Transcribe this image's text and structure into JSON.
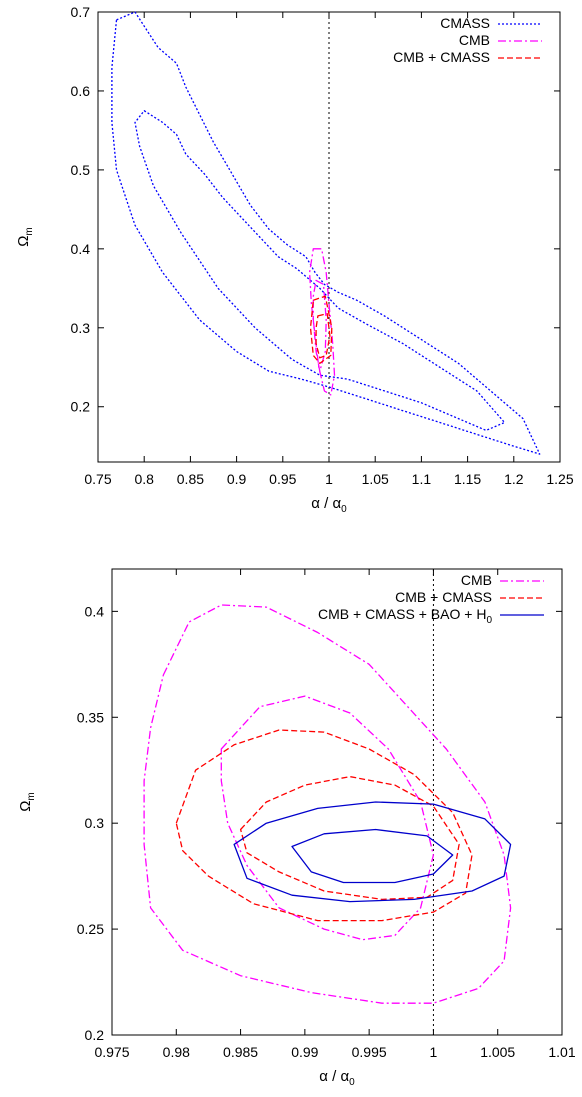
{
  "chart_data": [
    {
      "type": "line",
      "xlabel": "α / α",
      "xlabel_sub": "0",
      "ylabel": "Ω",
      "ylabel_sub": "m",
      "xlim": [
        0.75,
        1.25
      ],
      "ylim": [
        0.13,
        0.7
      ],
      "xticks": [
        0.75,
        0.8,
        0.85,
        0.9,
        0.95,
        1,
        1.05,
        1.1,
        1.15,
        1.2,
        1.25
      ],
      "xtick_labels": [
        "0.75",
        "0.8",
        "0.85",
        "0.9",
        "0.95",
        "1",
        "1.05",
        "1.1",
        "1.15",
        "1.2",
        "1.25"
      ],
      "yticks": [
        0.2,
        0.3,
        0.4,
        0.5,
        0.6,
        0.7
      ],
      "ytick_labels": [
        "0.2",
        "0.3",
        "0.4",
        "0.5",
        "0.6",
        "0.7"
      ],
      "reference_line": {
        "x": 1,
        "style": "dotted"
      },
      "legend_position": "top-right",
      "series": [
        {
          "name": "CMASS",
          "color": "#0000ff",
          "dash": "dotted",
          "contours": [
            [
              [
                0.77,
                0.69
              ],
              [
                0.79,
                0.7
              ],
              [
                0.815,
                0.655
              ],
              [
                0.835,
                0.635
              ],
              [
                0.845,
                0.605
              ],
              [
                0.86,
                0.57
              ],
              [
                0.875,
                0.535
              ],
              [
                0.89,
                0.505
              ],
              [
                0.905,
                0.475
              ],
              [
                0.915,
                0.455
              ],
              [
                0.935,
                0.425
              ],
              [
                0.955,
                0.405
              ],
              [
                0.975,
                0.39
              ],
              [
                0.985,
                0.37
              ],
              [
                0.995,
                0.355
              ],
              [
                1.01,
                0.345
              ],
              [
                1.03,
                0.335
              ],
              [
                1.06,
                0.315
              ],
              [
                1.1,
                0.285
              ],
              [
                1.14,
                0.255
              ],
              [
                1.18,
                0.215
              ],
              [
                1.21,
                0.185
              ],
              [
                1.228,
                0.14
              ],
              [
                1.2,
                0.15
              ],
              [
                1.16,
                0.165
              ],
              [
                1.12,
                0.18
              ],
              [
                1.08,
                0.195
              ],
              [
                1.04,
                0.21
              ],
              [
                1.0,
                0.225
              ],
              [
                0.97,
                0.235
              ],
              [
                0.935,
                0.245
              ],
              [
                0.9,
                0.27
              ],
              [
                0.86,
                0.31
              ],
              [
                0.82,
                0.37
              ],
              [
                0.79,
                0.43
              ],
              [
                0.77,
                0.5
              ],
              [
                0.765,
                0.56
              ],
              [
                0.765,
                0.63
              ],
              [
                0.77,
                0.69
              ]
            ],
            [
              [
                0.8,
                0.575
              ],
              [
                0.82,
                0.56
              ],
              [
                0.835,
                0.545
              ],
              [
                0.845,
                0.52
              ],
              [
                0.865,
                0.495
              ],
              [
                0.885,
                0.465
              ],
              [
                0.905,
                0.44
              ],
              [
                0.925,
                0.415
              ],
              [
                0.945,
                0.39
              ],
              [
                0.965,
                0.375
              ],
              [
                0.98,
                0.36
              ],
              [
                0.99,
                0.35
              ],
              [
                1.01,
                0.325
              ],
              [
                1.04,
                0.305
              ],
              [
                1.08,
                0.28
              ],
              [
                1.12,
                0.25
              ],
              [
                1.16,
                0.22
              ],
              [
                1.19,
                0.18
              ],
              [
                1.17,
                0.17
              ],
              [
                1.14,
                0.185
              ],
              [
                1.1,
                0.205
              ],
              [
                1.06,
                0.22
              ],
              [
                1.02,
                0.235
              ],
              [
                0.99,
                0.24
              ],
              [
                0.96,
                0.26
              ],
              [
                0.92,
                0.3
              ],
              [
                0.88,
                0.35
              ],
              [
                0.84,
                0.42
              ],
              [
                0.81,
                0.48
              ],
              [
                0.795,
                0.53
              ],
              [
                0.79,
                0.56
              ],
              [
                0.8,
                0.575
              ]
            ]
          ]
        },
        {
          "name": "CMB",
          "color": "#ff00ff",
          "dash": "dash-dot",
          "contours": [
            [
              [
                0.983,
                0.4
              ],
              [
                0.992,
                0.4
              ],
              [
                0.997,
                0.37
              ],
              [
                1.0,
                0.33
              ],
              [
                1.004,
                0.28
              ],
              [
                1.006,
                0.24
              ],
              [
                1.002,
                0.215
              ],
              [
                0.995,
                0.22
              ],
              [
                0.989,
                0.25
              ],
              [
                0.985,
                0.29
              ],
              [
                0.981,
                0.33
              ],
              [
                0.979,
                0.37
              ],
              [
                0.983,
                0.4
              ]
            ],
            [
              [
                0.986,
                0.36
              ],
              [
                0.994,
                0.355
              ],
              [
                0.997,
                0.31
              ],
              [
                0.996,
                0.27
              ],
              [
                0.99,
                0.245
              ],
              [
                0.986,
                0.27
              ],
              [
                0.983,
                0.31
              ],
              [
                0.983,
                0.34
              ],
              [
                0.986,
                0.36
              ]
            ]
          ]
        },
        {
          "name": "CMB + CMASS",
          "color": "#ff0000",
          "dash": "dashed",
          "contours": [
            [
              [
                0.983,
                0.335
              ],
              [
                0.996,
                0.34
              ],
              [
                1.003,
                0.3
              ],
              [
                1.002,
                0.265
              ],
              [
                0.99,
                0.255
              ],
              [
                0.983,
                0.265
              ],
              [
                0.98,
                0.3
              ],
              [
                0.983,
                0.335
              ]
            ],
            [
              [
                0.988,
                0.315
              ],
              [
                0.998,
                0.318
              ],
              [
                1.001,
                0.29
              ],
              [
                0.997,
                0.265
              ],
              [
                0.99,
                0.262
              ],
              [
                0.986,
                0.28
              ],
              [
                0.986,
                0.3
              ],
              [
                0.988,
                0.315
              ]
            ]
          ]
        }
      ]
    },
    {
      "type": "line",
      "xlabel": "α / α",
      "xlabel_sub": "0",
      "ylabel": "Ω",
      "ylabel_sub": "m",
      "xlim": [
        0.975,
        1.01
      ],
      "ylim": [
        0.2,
        0.42
      ],
      "xticks": [
        0.975,
        0.98,
        0.985,
        0.99,
        0.995,
        1,
        1.005,
        1.01
      ],
      "xtick_labels": [
        "0.975",
        "0.98",
        "0.985",
        "0.99",
        "0.995",
        "1",
        "1.005",
        "1.01"
      ],
      "yticks": [
        0.2,
        0.25,
        0.3,
        0.35,
        0.4
      ],
      "ytick_labels": [
        "0.2",
        "0.25",
        "0.3",
        "0.35",
        "0.4"
      ],
      "reference_line": {
        "x": 1,
        "style": "dotted"
      },
      "legend_position": "top-right",
      "series": [
        {
          "name": "CMB",
          "color": "#ff00ff",
          "dash": "dash-dot",
          "contours": [
            [
              [
                0.979,
                0.37
              ],
              [
                0.981,
                0.395
              ],
              [
                0.9835,
                0.403
              ],
              [
                0.987,
                0.402
              ],
              [
                0.991,
                0.39
              ],
              [
                0.995,
                0.375
              ],
              [
                0.998,
                0.355
              ],
              [
                1.001,
                0.335
              ],
              [
                1.004,
                0.31
              ],
              [
                1.0055,
                0.285
              ],
              [
                1.006,
                0.26
              ],
              [
                1.0055,
                0.235
              ],
              [
                1.0035,
                0.222
              ],
              [
                1.0,
                0.215
              ],
              [
                0.996,
                0.215
              ],
              [
                0.9905,
                0.22
              ],
              [
                0.985,
                0.228
              ],
              [
                0.9805,
                0.24
              ],
              [
                0.978,
                0.26
              ],
              [
                0.9775,
                0.29
              ],
              [
                0.9775,
                0.32
              ],
              [
                0.978,
                0.345
              ],
              [
                0.979,
                0.37
              ]
            ],
            [
              [
                0.9835,
                0.335
              ],
              [
                0.9865,
                0.355
              ],
              [
                0.99,
                0.36
              ],
              [
                0.9935,
                0.352
              ],
              [
                0.9965,
                0.335
              ],
              [
                0.999,
                0.31
              ],
              [
                1.0,
                0.285
              ],
              [
                0.999,
                0.26
              ],
              [
                0.997,
                0.247
              ],
              [
                0.9945,
                0.245
              ],
              [
                0.9915,
                0.25
              ],
              [
                0.988,
                0.26
              ],
              [
                0.9855,
                0.28
              ],
              [
                0.984,
                0.3
              ],
              [
                0.9835,
                0.32
              ],
              [
                0.9835,
                0.335
              ]
            ]
          ]
        },
        {
          "name": "CMB + CMASS",
          "color": "#ff0000",
          "dash": "dashed",
          "contours": [
            [
              [
                0.98,
                0.3
              ],
              [
                0.9815,
                0.325
              ],
              [
                0.9845,
                0.337
              ],
              [
                0.988,
                0.344
              ],
              [
                0.9915,
                0.343
              ],
              [
                0.995,
                0.335
              ],
              [
                0.9985,
                0.323
              ],
              [
                1.0015,
                0.305
              ],
              [
                1.003,
                0.285
              ],
              [
                1.0025,
                0.267
              ],
              [
                1.0,
                0.258
              ],
              [
                0.996,
                0.254
              ],
              [
                0.991,
                0.254
              ],
              [
                0.986,
                0.262
              ],
              [
                0.9825,
                0.275
              ],
              [
                0.9805,
                0.287
              ],
              [
                0.98,
                0.3
              ]
            ],
            [
              [
                0.985,
                0.297
              ],
              [
                0.987,
                0.31
              ],
              [
                0.99,
                0.318
              ],
              [
                0.9935,
                0.322
              ],
              [
                0.997,
                0.318
              ],
              [
                1.0,
                0.308
              ],
              [
                1.002,
                0.29
              ],
              [
                1.0015,
                0.273
              ],
              [
                0.9995,
                0.265
              ],
              [
                0.996,
                0.264
              ],
              [
                0.9915,
                0.268
              ],
              [
                0.988,
                0.277
              ],
              [
                0.9855,
                0.286
              ],
              [
                0.985,
                0.297
              ]
            ]
          ]
        },
        {
          "name": "CMB + CMASS + BAO + H",
          "name_sub": "0",
          "color": "#0000cc",
          "dash": "solid",
          "contours": [
            [
              [
                0.9845,
                0.29
              ],
              [
                0.987,
                0.3
              ],
              [
                0.991,
                0.307
              ],
              [
                0.9955,
                0.31
              ],
              [
                1.0,
                0.309
              ],
              [
                1.004,
                0.302
              ],
              [
                1.006,
                0.29
              ],
              [
                1.0055,
                0.275
              ],
              [
                1.003,
                0.268
              ],
              [
                0.9985,
                0.264
              ],
              [
                0.9935,
                0.263
              ],
              [
                0.989,
                0.266
              ],
              [
                0.9855,
                0.274
              ],
              [
                0.9845,
                0.29
              ]
            ],
            [
              [
                0.989,
                0.289
              ],
              [
                0.9915,
                0.295
              ],
              [
                0.9955,
                0.297
              ],
              [
                0.9995,
                0.294
              ],
              [
                1.0015,
                0.285
              ],
              [
                1.0,
                0.276
              ],
              [
                0.997,
                0.272
              ],
              [
                0.993,
                0.272
              ],
              [
                0.9905,
                0.277
              ],
              [
                0.989,
                0.289
              ]
            ]
          ]
        }
      ]
    }
  ]
}
